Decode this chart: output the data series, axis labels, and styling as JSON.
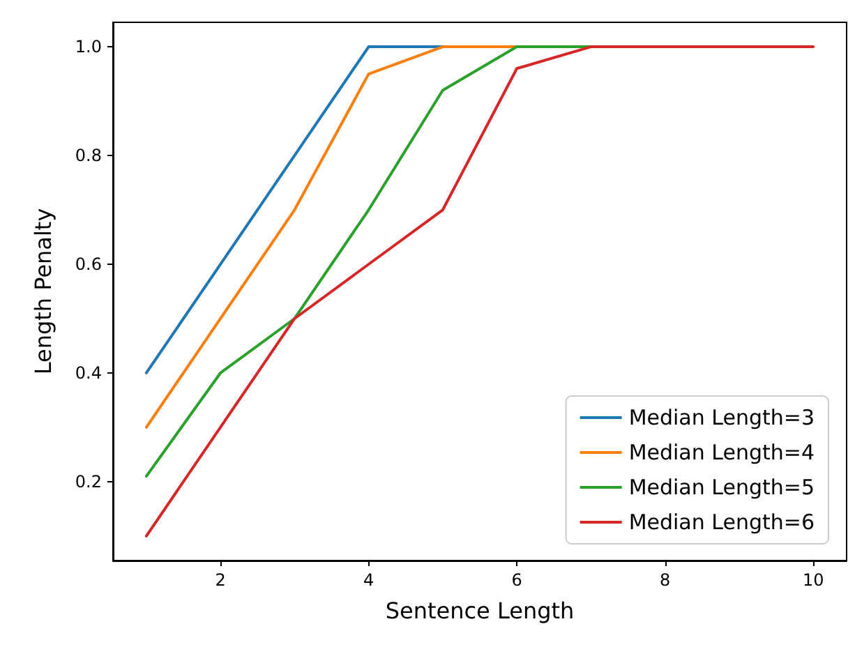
{
  "chart_data": {
    "type": "line",
    "xlabel": "Sentence Length",
    "ylabel": "Length Penalty",
    "x": [
      1,
      2,
      3,
      4,
      5,
      6,
      7,
      8,
      9,
      10
    ],
    "series": [
      {
        "name": "Median Length=3",
        "color": "#1f77b4",
        "values": [
          0.4,
          0.6,
          0.8,
          1,
          1,
          1,
          null,
          null,
          null,
          null
        ]
      },
      {
        "name": "Median Length=4",
        "color": "#ff7f0e",
        "values": [
          0.3,
          0.5,
          0.7,
          0.95,
          1,
          1,
          1,
          null,
          null,
          null
        ]
      },
      {
        "name": "Median Length=5",
        "color": "#2ca02c",
        "values": [
          0.21,
          0.4,
          0.5,
          0.7,
          0.92,
          1,
          1,
          null,
          null,
          null
        ]
      },
      {
        "name": "Median Length=6",
        "color": "#d62728",
        "values": [
          0.1,
          0.3,
          0.5,
          0.6,
          0.7,
          0.96,
          1,
          1,
          1,
          1
        ]
      }
    ],
    "xlim": [
      0.55,
      10.45
    ],
    "xticks": [
      2,
      4,
      6,
      8,
      10
    ],
    "ylim": [
      0.055,
      1.045
    ],
    "yticks": [
      0.2,
      0.4,
      0.6,
      0.8,
      {
        "value": 1,
        "label": "1.0"
      }
    ],
    "grid": false,
    "legend": "bottom right",
    "marker": "none",
    "line_style": "solid"
  }
}
